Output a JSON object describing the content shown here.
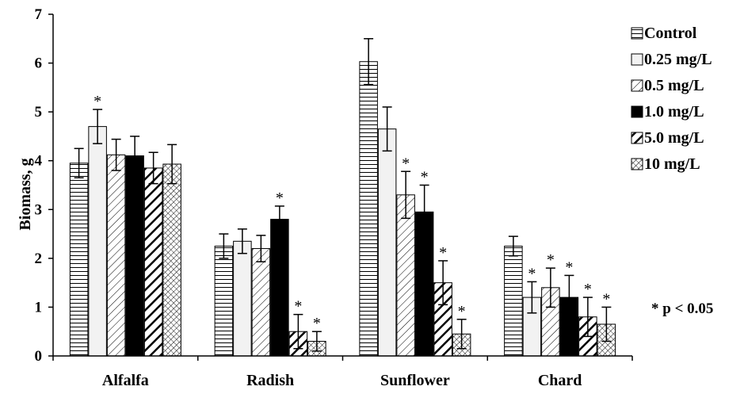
{
  "chart_data": {
    "type": "bar",
    "title": "",
    "xlabel": "",
    "ylabel": "Biomass, g",
    "ylim": [
      0,
      7
    ],
    "yticks": [
      "0",
      "1",
      "2",
      "3",
      "4",
      "5",
      "6",
      "7"
    ],
    "categories": [
      "Alfalfa",
      "Radish",
      "Sunflower",
      "Chard"
    ],
    "series": [
      {
        "name": "Control",
        "pattern": "horizontal-lines",
        "values": [
          3.95,
          2.25,
          6.03,
          2.25
        ],
        "errors": [
          0.3,
          0.25,
          0.47,
          0.2
        ],
        "significant": [
          false,
          false,
          false,
          false
        ]
      },
      {
        "name": "0.25 mg/L",
        "pattern": "light-solid",
        "values": [
          4.7,
          2.35,
          4.65,
          1.2
        ],
        "errors": [
          0.35,
          0.25,
          0.45,
          0.32
        ],
        "significant": [
          true,
          false,
          false,
          true
        ]
      },
      {
        "name": "0.5 mg/L",
        "pattern": "thin-diagonal",
        "values": [
          4.12,
          2.2,
          3.3,
          1.4
        ],
        "errors": [
          0.32,
          0.27,
          0.48,
          0.4
        ],
        "significant": [
          false,
          false,
          true,
          true
        ]
      },
      {
        "name": "1.0 mg/L",
        "pattern": "solid-black",
        "values": [
          4.1,
          2.8,
          2.95,
          1.2
        ],
        "errors": [
          0.4,
          0.27,
          0.55,
          0.45
        ],
        "significant": [
          false,
          true,
          true,
          true
        ]
      },
      {
        "name": "5.0 mg/L",
        "pattern": "thick-diagonal",
        "values": [
          3.85,
          0.5,
          1.5,
          0.8
        ],
        "errors": [
          0.32,
          0.35,
          0.45,
          0.4
        ],
        "significant": [
          false,
          true,
          true,
          true
        ]
      },
      {
        "name": "10 mg/L",
        "pattern": "crosshatch",
        "values": [
          3.93,
          0.3,
          0.45,
          0.65
        ],
        "errors": [
          0.4,
          0.2,
          0.3,
          0.35
        ],
        "significant": [
          false,
          true,
          true,
          true
        ]
      }
    ],
    "significance_marker": "*",
    "annotation": "* p < 0.05",
    "legend_position": "right"
  }
}
